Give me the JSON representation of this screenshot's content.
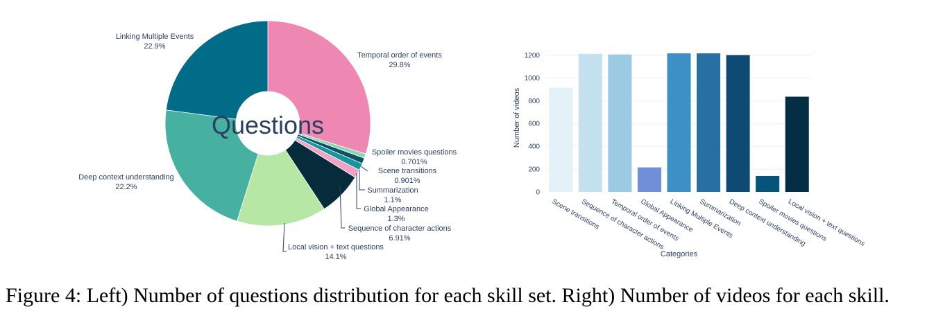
{
  "caption": "Figure 4: Left) Number of questions distribution for each skill set. Right) Number of videos for each skill.",
  "chart_data": [
    {
      "type": "pie",
      "hole_text": "Questions",
      "slices": [
        {
          "label": "Temporal order of events",
          "pct_label": "29.8%",
          "value": 29.8,
          "color": "#ef87b3"
        },
        {
          "label": "Spoiler movies questions",
          "pct_label": "0.701%",
          "value": 0.701,
          "color": "#8fd6b5"
        },
        {
          "label": "Scene transitions",
          "pct_label": "0.901%",
          "value": 0.901,
          "color": "#0b5563"
        },
        {
          "label": "Summarization",
          "pct_label": "1.1%",
          "value": 1.1,
          "color": "#17959e"
        },
        {
          "label": "Global Appearance",
          "pct_label": "1.3%",
          "value": 1.3,
          "color": "#f2a3c3"
        },
        {
          "label": "Sequence of character actions",
          "pct_label": "6.91%",
          "value": 6.91,
          "color": "#062c3c"
        },
        {
          "label": "Local vision + text questions",
          "pct_label": "14.1%",
          "value": 14.1,
          "color": "#b6e7a4"
        },
        {
          "label": "Deep context understanding",
          "pct_label": "22.2%",
          "value": 22.2,
          "color": "#46b1a1"
        },
        {
          "label": "Linking Multiple Events",
          "pct_label": "22.9%",
          "value": 22.9,
          "color": "#016c87"
        }
      ]
    },
    {
      "type": "bar",
      "categories": [
        "Scene transitions",
        "Sequence of character actions",
        "Temporal order of events",
        "Global Appearance",
        "Linking Multiple Events",
        "Summarization",
        "Deep context understanding",
        "Spoiler movies questions",
        "Local vision + text questions"
      ],
      "values": [
        915,
        1210,
        1205,
        215,
        1215,
        1215,
        1200,
        140,
        835
      ],
      "colors": [
        "#e3f1f9",
        "#c4e1ef",
        "#9ccae3",
        "#6f8fd8",
        "#3d90c3",
        "#2670a3",
        "#0e4a73",
        "#06547a",
        "#032e44"
      ],
      "xlabel": "Categories",
      "ylabel": "Number of videos",
      "ylim": [
        0,
        1300
      ],
      "yticks": [
        0,
        200,
        400,
        600,
        800,
        1000,
        1200
      ],
      "grid": true
    }
  ]
}
